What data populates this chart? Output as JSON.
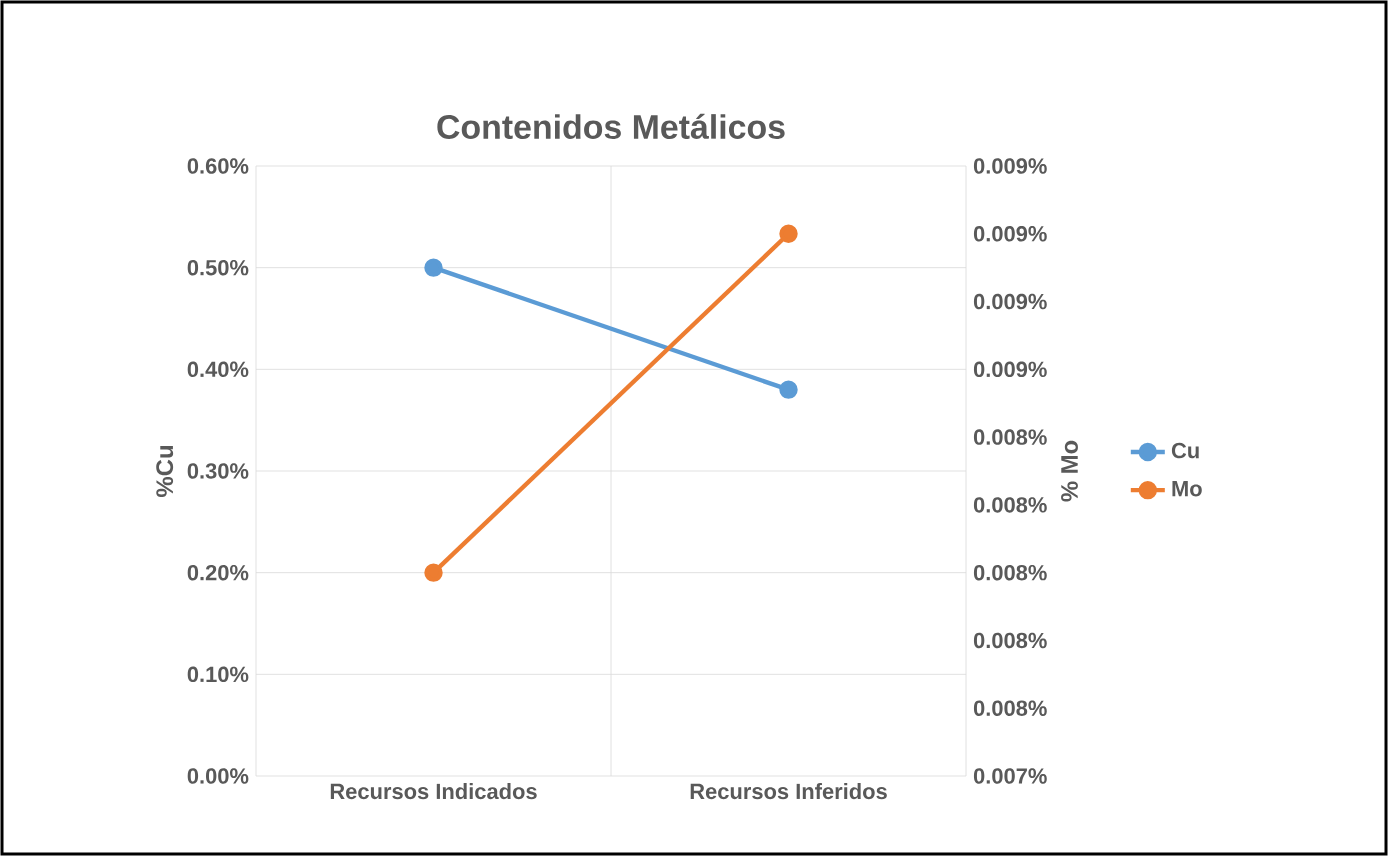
{
  "chart_data": {
    "type": "line",
    "title": "Contenidos Metálicos",
    "ylabel": "%Cu",
    "y2label": "% Mo",
    "categories": [
      "Recursos Indicados",
      "Recursos Inferidos"
    ],
    "series": [
      {
        "name": "Cu",
        "color": "#5b9bd5",
        "values": [
          0.5,
          0.38
        ]
      },
      {
        "name": "Mo",
        "color": "#ed7d31",
        "values": [
          0.008,
          0.009
        ],
        "axis": "y2"
      }
    ],
    "ylim": [
      0,
      0.6
    ],
    "yticks": [
      {
        "value": 0,
        "label": "0.00%"
      },
      {
        "value": 0.1,
        "label": "0.10%"
      },
      {
        "value": 0.2,
        "label": "0.20%"
      },
      {
        "value": 0.3,
        "label": "0.30%"
      },
      {
        "value": 0.4,
        "label": "0.40%"
      },
      {
        "value": 0.5,
        "label": "0.50%"
      },
      {
        "value": 0.6,
        "label": "0.60%"
      }
    ],
    "y2lim": [
      0.0074,
      0.0092
    ],
    "y2ticks": [
      {
        "value": 0.0074,
        "label": "0.007%"
      },
      {
        "value": 0.0076,
        "label": "0.008%"
      },
      {
        "value": 0.0078,
        "label": "0.008%"
      },
      {
        "value": 0.008,
        "label": "0.008%"
      },
      {
        "value": 0.0082,
        "label": "0.008%"
      },
      {
        "value": 0.0084,
        "label": "0.008%"
      },
      {
        "value": 0.0086,
        "label": "0.009%"
      },
      {
        "value": 0.0088,
        "label": "0.009%"
      },
      {
        "value": 0.009,
        "label": "0.009%"
      },
      {
        "value": 0.0092,
        "label": "0.009%"
      }
    ],
    "grid": true,
    "legend": "right",
    "marker": "circle",
    "line_style": "solid"
  }
}
